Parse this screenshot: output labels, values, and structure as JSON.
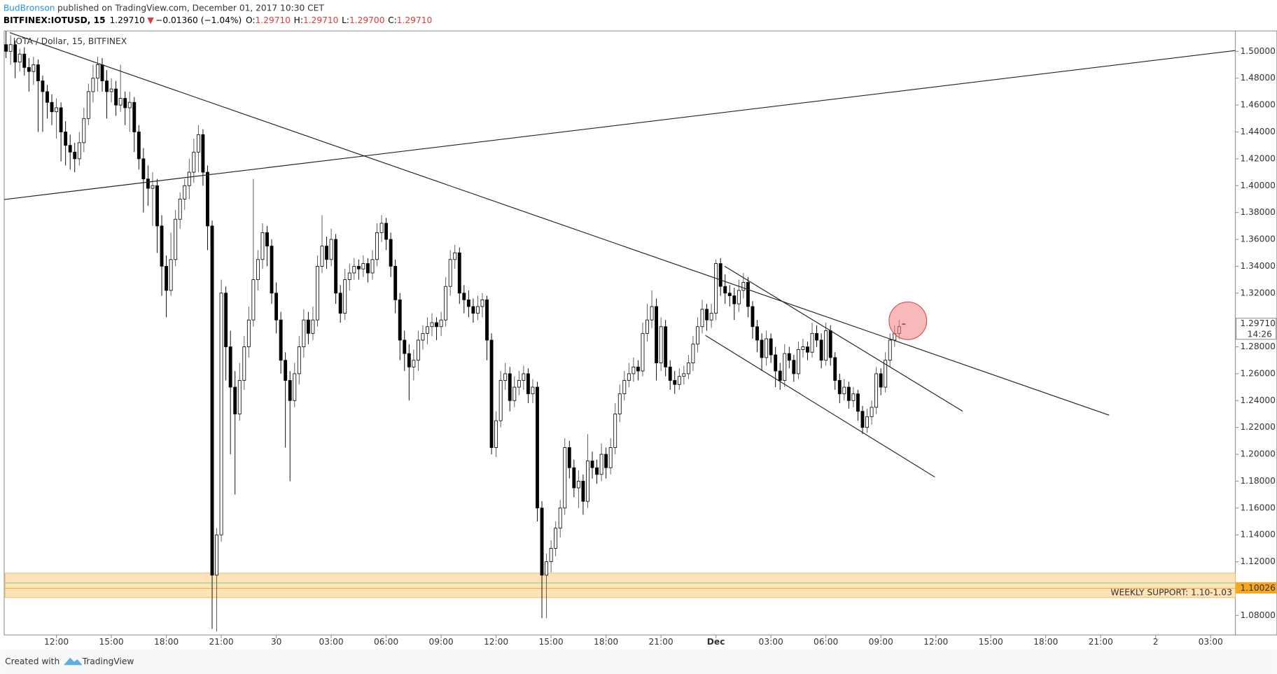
{
  "header": {
    "author": "BudBronson",
    "published": "published on TradingView.com, December 01, 2017 10:30 CET",
    "symbol": "BITFINEX:IOTUSD, 15",
    "last": "1.29710",
    "arrow": "▼",
    "change": "−0.01360 (−1.04%)",
    "ohlc_labels": [
      "O:",
      "H:",
      "L:",
      "C:"
    ],
    "ohlc_values": [
      "1.29710",
      "1.29710",
      "1.29700",
      "1.29710"
    ]
  },
  "footer": {
    "created": "Created with",
    "brand": "TradingView"
  },
  "chart_data": {
    "type": "candlestick",
    "title": "IOTA / Dollar, 15, BITFINEX",
    "xlim": [
      -0.4,
      268.4
    ],
    "ylim": [
      1.0655,
      1.5152
    ],
    "xticks": [
      {
        "value": 11,
        "label": "12:00"
      },
      {
        "value": 23,
        "label": "15:00"
      },
      {
        "value": 35,
        "label": "18:00"
      },
      {
        "value": 47,
        "label": "21:00"
      },
      {
        "value": 59,
        "label": "30"
      },
      {
        "value": 71,
        "label": "03:00"
      },
      {
        "value": 83,
        "label": "06:00"
      },
      {
        "value": 95,
        "label": "09:00"
      },
      {
        "value": 107,
        "label": "12:00"
      },
      {
        "value": 119,
        "label": "15:00"
      },
      {
        "value": 131,
        "label": "18:00"
      },
      {
        "value": 143,
        "label": "21:00"
      },
      {
        "value": 155,
        "label": "Dec"
      },
      {
        "value": 167,
        "label": "03:00"
      },
      {
        "value": 179,
        "label": "06:00"
      },
      {
        "value": 191,
        "label": "09:00"
      },
      {
        "value": 203,
        "label": "12:00"
      },
      {
        "value": 215,
        "label": "15:00"
      },
      {
        "value": 227,
        "label": "18:00"
      },
      {
        "value": 239,
        "label": "21:00"
      },
      {
        "value": 251,
        "label": "2"
      },
      {
        "value": 263,
        "label": "03:00"
      }
    ],
    "yticks": [
      {
        "value": 1.08,
        "label": "1.08000"
      },
      {
        "value": 1.1,
        "label": "1.10000"
      },
      {
        "value": 1.12,
        "label": "1.12000"
      },
      {
        "value": 1.14,
        "label": "1.14000"
      },
      {
        "value": 1.16,
        "label": "1.16000"
      },
      {
        "value": 1.18,
        "label": "1.18000"
      },
      {
        "value": 1.2,
        "label": "1.20000"
      },
      {
        "value": 1.22,
        "label": "1.22000"
      },
      {
        "value": 1.24,
        "label": "1.24000"
      },
      {
        "value": 1.26,
        "label": "1.26000"
      },
      {
        "value": 1.28,
        "label": "1.28000"
      },
      {
        "value": 1.32,
        "label": "1.32000"
      },
      {
        "value": 1.34,
        "label": "1.34000"
      },
      {
        "value": 1.36,
        "label": "1.36000"
      },
      {
        "value": 1.38,
        "label": "1.38000"
      },
      {
        "value": 1.4,
        "label": "1.40000"
      },
      {
        "value": 1.42,
        "label": "1.42000"
      },
      {
        "value": 1.44,
        "label": "1.44000"
      },
      {
        "value": 1.46,
        "label": "1.46000"
      },
      {
        "value": 1.48,
        "label": "1.48000"
      },
      {
        "value": 1.5,
        "label": "1.50000"
      }
    ],
    "up_color": "#ffffff",
    "down_color": "#000000",
    "ohlc": [
      [
        1.505,
        1.515,
        1.495,
        1.5
      ],
      [
        1.5,
        1.512,
        1.49,
        1.505
      ],
      [
        1.505,
        1.508,
        1.48,
        1.492
      ],
      [
        1.492,
        1.502,
        1.485,
        1.498
      ],
      [
        1.498,
        1.503,
        1.482,
        1.488
      ],
      [
        1.488,
        1.495,
        1.47,
        1.485
      ],
      [
        1.485,
        1.496,
        1.475,
        1.49
      ],
      [
        1.49,
        1.494,
        1.44,
        1.478
      ],
      [
        1.478,
        1.482,
        1.44,
        1.47
      ],
      [
        1.47,
        1.475,
        1.45,
        1.462
      ],
      [
        1.462,
        1.468,
        1.445,
        1.455
      ],
      [
        1.455,
        1.465,
        1.435,
        1.458
      ],
      [
        1.458,
        1.462,
        1.418,
        1.44
      ],
      [
        1.44,
        1.448,
        1.415,
        1.43
      ],
      [
        1.43,
        1.438,
        1.412,
        1.425
      ],
      [
        1.425,
        1.432,
        1.41,
        1.42
      ],
      [
        1.42,
        1.44,
        1.415,
        1.432
      ],
      [
        1.432,
        1.458,
        1.425,
        1.45
      ],
      [
        1.45,
        1.476,
        1.445,
        1.47
      ],
      [
        1.47,
        1.49,
        1.462,
        1.48
      ],
      [
        1.48,
        1.496,
        1.47,
        1.49
      ],
      [
        1.49,
        1.495,
        1.47,
        1.478
      ],
      [
        1.478,
        1.486,
        1.45,
        1.47
      ],
      [
        1.47,
        1.48,
        1.462,
        1.472
      ],
      [
        1.472,
        1.478,
        1.452,
        1.46
      ],
      [
        1.46,
        1.49,
        1.455,
        1.465
      ],
      [
        1.465,
        1.47,
        1.445,
        1.458
      ],
      [
        1.458,
        1.47,
        1.44,
        1.462
      ],
      [
        1.462,
        1.466,
        1.425,
        1.44
      ],
      [
        1.44,
        1.445,
        1.412,
        1.42
      ],
      [
        1.42,
        1.428,
        1.38,
        1.405
      ],
      [
        1.405,
        1.415,
        1.385,
        1.398
      ],
      [
        1.398,
        1.41,
        1.37,
        1.4
      ],
      [
        1.4,
        1.405,
        1.35,
        1.37
      ],
      [
        1.37,
        1.378,
        1.318,
        1.34
      ],
      [
        1.34,
        1.348,
        1.302,
        1.322
      ],
      [
        1.322,
        1.365,
        1.318,
        1.345
      ],
      [
        1.345,
        1.382,
        1.34,
        1.375
      ],
      [
        1.375,
        1.395,
        1.368,
        1.39
      ],
      [
        1.39,
        1.405,
        1.382,
        1.4
      ],
      [
        1.4,
        1.42,
        1.39,
        1.41
      ],
      [
        1.41,
        1.435,
        1.402,
        1.425
      ],
      [
        1.425,
        1.445,
        1.41,
        1.438
      ],
      [
        1.438,
        1.442,
        1.4,
        1.41
      ],
      [
        1.41,
        1.415,
        1.352,
        1.37
      ],
      [
        1.37,
        1.374,
        1.07,
        1.11
      ],
      [
        1.11,
        1.145,
        1.068,
        1.14
      ],
      [
        1.14,
        1.33,
        1.135,
        1.32
      ],
      [
        1.32,
        1.325,
        1.255,
        1.28
      ],
      [
        1.28,
        1.292,
        1.2,
        1.25
      ],
      [
        1.25,
        1.262,
        1.17,
        1.23
      ],
      [
        1.23,
        1.268,
        1.225,
        1.255
      ],
      [
        1.255,
        1.288,
        1.248,
        1.28
      ],
      [
        1.28,
        1.31,
        1.272,
        1.3
      ],
      [
        1.3,
        1.405,
        1.295,
        1.33
      ],
      [
        1.33,
        1.352,
        1.322,
        1.345
      ],
      [
        1.345,
        1.372,
        1.338,
        1.365
      ],
      [
        1.365,
        1.37,
        1.34,
        1.355
      ],
      [
        1.355,
        1.36,
        1.312,
        1.32
      ],
      [
        1.32,
        1.328,
        1.29,
        1.3
      ],
      [
        1.3,
        1.306,
        1.26,
        1.27
      ],
      [
        1.27,
        1.276,
        1.205,
        1.255
      ],
      [
        1.255,
        1.262,
        1.18,
        1.24
      ],
      [
        1.24,
        1.268,
        1.235,
        1.26
      ],
      [
        1.26,
        1.288,
        1.252,
        1.28
      ],
      [
        1.28,
        1.308,
        1.272,
        1.3
      ],
      [
        1.3,
        1.306,
        1.282,
        1.29
      ],
      [
        1.29,
        1.31,
        1.285,
        1.3
      ],
      [
        1.3,
        1.348,
        1.295,
        1.34
      ],
      [
        1.34,
        1.378,
        1.335,
        1.355
      ],
      [
        1.355,
        1.362,
        1.338,
        1.345
      ],
      [
        1.345,
        1.368,
        1.34,
        1.36
      ],
      [
        1.36,
        1.364,
        1.312,
        1.32
      ],
      [
        1.32,
        1.326,
        1.298,
        1.305
      ],
      [
        1.305,
        1.338,
        1.3,
        1.33
      ],
      [
        1.33,
        1.342,
        1.322,
        1.335
      ],
      [
        1.335,
        1.346,
        1.33,
        1.34
      ],
      [
        1.34,
        1.345,
        1.33,
        1.338
      ],
      [
        1.338,
        1.348,
        1.332,
        1.342
      ],
      [
        1.342,
        1.346,
        1.328,
        1.335
      ],
      [
        1.335,
        1.352,
        1.33,
        1.345
      ],
      [
        1.345,
        1.372,
        1.34,
        1.365
      ],
      [
        1.365,
        1.378,
        1.358,
        1.372
      ],
      [
        1.372,
        1.376,
        1.352,
        1.36
      ],
      [
        1.36,
        1.365,
        1.332,
        1.34
      ],
      [
        1.34,
        1.345,
        1.305,
        1.315
      ],
      [
        1.315,
        1.32,
        1.27,
        1.285
      ],
      [
        1.285,
        1.292,
        1.262,
        1.275
      ],
      [
        1.275,
        1.282,
        1.24,
        1.265
      ],
      [
        1.265,
        1.278,
        1.255,
        1.27
      ],
      [
        1.27,
        1.292,
        1.262,
        1.285
      ],
      [
        1.285,
        1.296,
        1.278,
        1.29
      ],
      [
        1.29,
        1.302,
        1.282,
        1.295
      ],
      [
        1.295,
        1.305,
        1.288,
        1.298
      ],
      [
        1.298,
        1.302,
        1.285,
        1.295
      ],
      [
        1.295,
        1.306,
        1.288,
        1.3
      ],
      [
        1.3,
        1.332,
        1.295,
        1.325
      ],
      [
        1.325,
        1.352,
        1.318,
        1.345
      ],
      [
        1.345,
        1.356,
        1.338,
        1.35
      ],
      [
        1.35,
        1.354,
        1.312,
        1.32
      ],
      [
        1.32,
        1.326,
        1.305,
        1.315
      ],
      [
        1.315,
        1.322,
        1.302,
        1.31
      ],
      [
        1.31,
        1.316,
        1.298,
        1.305
      ],
      [
        1.305,
        1.318,
        1.3,
        1.31
      ],
      [
        1.31,
        1.32,
        1.302,
        1.315
      ],
      [
        1.315,
        1.318,
        1.27,
        1.285
      ],
      [
        1.285,
        1.29,
        1.2,
        1.205
      ],
      [
        1.205,
        1.232,
        1.198,
        1.225
      ],
      [
        1.225,
        1.262,
        1.22,
        1.255
      ],
      [
        1.255,
        1.268,
        1.248,
        1.26
      ],
      [
        1.26,
        1.265,
        1.232,
        1.24
      ],
      [
        1.24,
        1.258,
        1.235,
        1.25
      ],
      [
        1.25,
        1.262,
        1.244,
        1.255
      ],
      [
        1.255,
        1.266,
        1.248,
        1.26
      ],
      [
        1.26,
        1.264,
        1.238,
        1.245
      ],
      [
        1.245,
        1.256,
        1.238,
        1.25
      ],
      [
        1.25,
        1.254,
        1.15,
        1.16
      ],
      [
        1.16,
        1.165,
        1.078,
        1.11
      ],
      [
        1.11,
        1.126,
        1.078,
        1.12
      ],
      [
        1.12,
        1.136,
        1.112,
        1.13
      ],
      [
        1.13,
        1.15,
        1.124,
        1.145
      ],
      [
        1.145,
        1.166,
        1.138,
        1.16
      ],
      [
        1.16,
        1.212,
        1.155,
        1.205
      ],
      [
        1.205,
        1.21,
        1.182,
        1.19
      ],
      [
        1.19,
        1.196,
        1.168,
        1.175
      ],
      [
        1.175,
        1.188,
        1.16,
        1.18
      ],
      [
        1.18,
        1.185,
        1.155,
        1.165
      ],
      [
        1.165,
        1.215,
        1.16,
        1.195
      ],
      [
        1.195,
        1.202,
        1.182,
        1.19
      ],
      [
        1.19,
        1.196,
        1.178,
        1.185
      ],
      [
        1.185,
        1.208,
        1.18,
        1.2
      ],
      [
        1.2,
        1.205,
        1.182,
        1.19
      ],
      [
        1.19,
        1.212,
        1.185,
        1.205
      ],
      [
        1.205,
        1.238,
        1.2,
        1.23
      ],
      [
        1.23,
        1.252,
        1.224,
        1.245
      ],
      [
        1.245,
        1.262,
        1.24,
        1.255
      ],
      [
        1.255,
        1.268,
        1.25,
        1.26
      ],
      [
        1.26,
        1.272,
        1.254,
        1.265
      ],
      [
        1.265,
        1.27,
        1.255,
        1.262
      ],
      [
        1.262,
        1.298,
        1.258,
        1.29
      ],
      [
        1.29,
        1.312,
        1.284,
        1.3
      ],
      [
        1.3,
        1.322,
        1.294,
        1.31
      ],
      [
        1.31,
        1.316,
        1.255,
        1.268
      ],
      [
        1.268,
        1.302,
        1.262,
        1.295
      ],
      [
        1.295,
        1.3,
        1.258,
        1.265
      ],
      [
        1.265,
        1.27,
        1.248,
        1.255
      ],
      [
        1.255,
        1.262,
        1.245,
        1.252
      ],
      [
        1.252,
        1.264,
        1.248,
        1.258
      ],
      [
        1.258,
        1.266,
        1.252,
        1.26
      ],
      [
        1.26,
        1.274,
        1.256,
        1.268
      ],
      [
        1.268,
        1.288,
        1.262,
        1.282
      ],
      [
        1.282,
        1.302,
        1.276,
        1.295
      ],
      [
        1.295,
        1.315,
        1.29,
        1.308
      ],
      [
        1.308,
        1.312,
        1.292,
        1.3
      ],
      [
        1.3,
        1.312,
        1.294,
        1.305
      ],
      [
        1.305,
        1.345,
        1.3,
        1.342
      ],
      [
        1.342,
        1.346,
        1.318,
        1.325
      ],
      [
        1.325,
        1.334,
        1.312,
        1.32
      ],
      [
        1.32,
        1.326,
        1.31,
        1.318
      ],
      [
        1.318,
        1.324,
        1.3,
        1.312
      ],
      [
        1.312,
        1.33,
        1.306,
        1.322
      ],
      [
        1.322,
        1.335,
        1.316,
        1.328
      ],
      [
        1.328,
        1.332,
        1.302,
        1.31
      ],
      [
        1.31,
        1.314,
        1.286,
        1.295
      ],
      [
        1.295,
        1.3,
        1.276,
        1.285
      ],
      [
        1.285,
        1.29,
        1.262,
        1.272
      ],
      [
        1.272,
        1.292,
        1.266,
        1.286
      ],
      [
        1.286,
        1.29,
        1.268,
        1.274
      ],
      [
        1.274,
        1.28,
        1.25,
        1.262
      ],
      [
        1.262,
        1.268,
        1.248,
        1.255
      ],
      [
        1.255,
        1.282,
        1.25,
        1.275
      ],
      [
        1.275,
        1.28,
        1.264,
        1.27
      ],
      [
        1.27,
        1.274,
        1.254,
        1.26
      ],
      [
        1.26,
        1.284,
        1.256,
        1.278
      ],
      [
        1.278,
        1.286,
        1.272,
        1.28
      ],
      [
        1.28,
        1.284,
        1.27,
        1.276
      ],
      [
        1.276,
        1.298,
        1.272,
        1.29
      ],
      [
        1.29,
        1.296,
        1.28,
        1.285
      ],
      [
        1.285,
        1.29,
        1.264,
        1.27
      ],
      [
        1.27,
        1.298,
        1.266,
        1.292
      ],
      [
        1.292,
        1.296,
        1.266,
        1.272
      ],
      [
        1.272,
        1.276,
        1.248,
        1.255
      ],
      [
        1.255,
        1.26,
        1.238,
        1.245
      ],
      [
        1.245,
        1.256,
        1.24,
        1.25
      ],
      [
        1.25,
        1.254,
        1.234,
        1.24
      ],
      [
        1.24,
        1.25,
        1.235,
        1.245
      ],
      [
        1.245,
        1.248,
        1.225,
        1.232
      ],
      [
        1.232,
        1.236,
        1.215,
        1.22
      ],
      [
        1.22,
        1.234,
        1.216,
        1.228
      ],
      [
        1.228,
        1.24,
        1.222,
        1.235
      ],
      [
        1.235,
        1.265,
        1.23,
        1.26
      ],
      [
        1.26,
        1.264,
        1.244,
        1.25
      ],
      [
        1.25,
        1.276,
        1.246,
        1.27
      ],
      [
        1.27,
        1.29,
        1.265,
        1.285
      ],
      [
        1.285,
        1.296,
        1.28,
        1.29
      ],
      [
        1.29,
        1.3,
        1.286,
        1.295
      ],
      [
        1.2971,
        1.2971,
        1.297,
        1.2971
      ]
    ],
    "trend_lines": [
      [
        -0.4,
        1.3897,
        268.4,
        1.5006
      ],
      [
        0.84,
        1.5139,
        240.85,
        1.2291
      ],
      [
        156.9,
        1.34,
        208.85,
        1.2321
      ],
      [
        152.7,
        1.2885,
        202.8,
        1.183
      ]
    ],
    "zone": {
      "from": 1.0933,
      "to": 1.1115,
      "color": "#fce3b8",
      "label": "WEEKLY SUPPORT: 1.10-1.03"
    },
    "support_line": {
      "value": 1.1042,
      "color": "#8fcf8f"
    },
    "circle": {
      "x": 196.9,
      "y": 1.2994,
      "ry": 0.014,
      "color": "#f08080"
    },
    "price_markers": [
      {
        "value": 1.2971,
        "label": "1.29710",
        "color": "#ffffff",
        "text_color": "#000000"
      },
      {
        "value": 1.10026,
        "label": "1.10026",
        "color": "#f5a623",
        "text_color": "#ffffff"
      }
    ],
    "countdown": "14:26"
  }
}
